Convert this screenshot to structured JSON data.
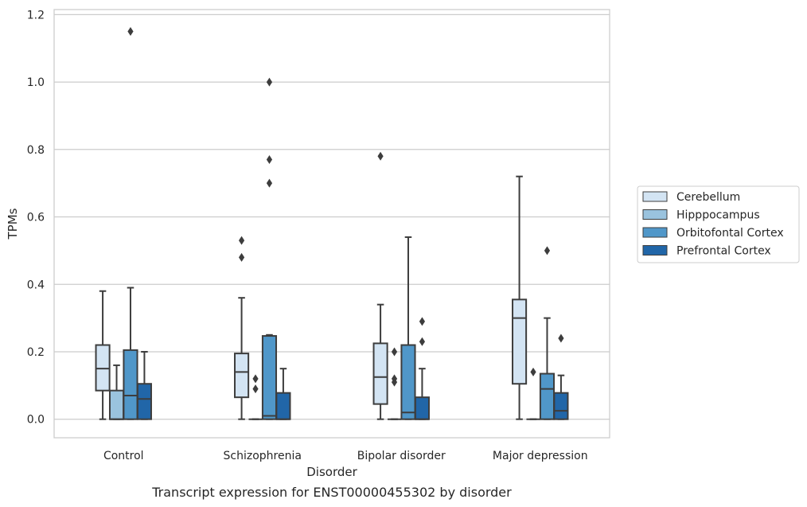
{
  "chart_data": {
    "type": "box",
    "title": "Transcript expression for ENST00000455302 by disorder",
    "xlabel": "Disorder",
    "ylabel": "TPMs",
    "ylim": [
      -0.055,
      1.215
    ],
    "yticks": [
      0.0,
      0.2,
      0.4,
      0.6,
      0.8,
      1.0,
      1.2
    ],
    "ytick_labels": [
      "0.0",
      "0.2",
      "0.4",
      "0.6",
      "0.8",
      "1.0",
      "1.2"
    ],
    "grid": "horizontal",
    "legend_placement": "outside-right",
    "categories": [
      "Control",
      "Schizophrenia",
      "Bipolar disorder",
      "Major depression"
    ],
    "series": [
      {
        "name": "Cerebellum",
        "color": "#d3e4f3",
        "boxes": [
          {
            "whislo": 0.0,
            "q1": 0.085,
            "med": 0.15,
            "q3": 0.22,
            "whishi": 0.38,
            "fliers": []
          },
          {
            "whislo": 0.0,
            "q1": 0.065,
            "med": 0.14,
            "q3": 0.195,
            "whishi": 0.36,
            "fliers": [
              0.48,
              0.53
            ]
          },
          {
            "whislo": 0.0,
            "q1": 0.045,
            "med": 0.125,
            "q3": 0.225,
            "whishi": 0.34,
            "fliers": [
              0.78
            ]
          },
          {
            "whislo": 0.0,
            "q1": 0.105,
            "med": 0.3,
            "q3": 0.355,
            "whishi": 0.72,
            "fliers": []
          }
        ]
      },
      {
        "name": "Hipppocampus",
        "color": "#9ac3de",
        "boxes": [
          {
            "whislo": 0.0,
            "q1": 0.0,
            "med": 0.0,
            "q3": 0.085,
            "whishi": 0.16,
            "fliers": []
          },
          {
            "whislo": 0.0,
            "q1": 0.0,
            "med": 0.0,
            "q3": 0.0,
            "whishi": 0.0,
            "fliers": [
              0.09,
              0.12
            ]
          },
          {
            "whislo": 0.0,
            "q1": 0.0,
            "med": 0.0,
            "q3": 0.0,
            "whishi": 0.0,
            "fliers": [
              0.11,
              0.12,
              0.2
            ]
          },
          {
            "whislo": 0.0,
            "q1": 0.0,
            "med": 0.0,
            "q3": 0.0,
            "whishi": 0.0,
            "fliers": [
              0.14
            ]
          }
        ]
      },
      {
        "name": "Orbitofontal Cortex",
        "color": "#5097c9",
        "boxes": [
          {
            "whislo": 0.0,
            "q1": 0.0,
            "med": 0.07,
            "q3": 0.205,
            "whishi": 0.39,
            "fliers": [
              1.15
            ]
          },
          {
            "whislo": 0.0,
            "q1": 0.0,
            "med": 0.01,
            "q3": 0.247,
            "whishi": 0.25,
            "fliers": [
              0.7,
              0.77,
              1.0
            ]
          },
          {
            "whislo": 0.0,
            "q1": 0.0,
            "med": 0.02,
            "q3": 0.22,
            "whishi": 0.54,
            "fliers": []
          },
          {
            "whislo": 0.0,
            "q1": 0.0,
            "med": 0.09,
            "q3": 0.135,
            "whishi": 0.3,
            "fliers": [
              0.5
            ]
          }
        ]
      },
      {
        "name": "Prefrontal Cortex",
        "color": "#2166a8",
        "boxes": [
          {
            "whislo": 0.0,
            "q1": 0.0,
            "med": 0.06,
            "q3": 0.105,
            "whishi": 0.2,
            "fliers": []
          },
          {
            "whislo": 0.0,
            "q1": 0.0,
            "med": 0.0,
            "q3": 0.078,
            "whishi": 0.15,
            "fliers": []
          },
          {
            "whislo": 0.0,
            "q1": 0.0,
            "med": 0.0,
            "q3": 0.065,
            "whishi": 0.15,
            "fliers": [
              0.23,
              0.29
            ]
          },
          {
            "whislo": 0.0,
            "q1": 0.0,
            "med": 0.025,
            "q3": 0.078,
            "whishi": 0.13,
            "fliers": [
              0.24
            ]
          }
        ]
      }
    ]
  }
}
